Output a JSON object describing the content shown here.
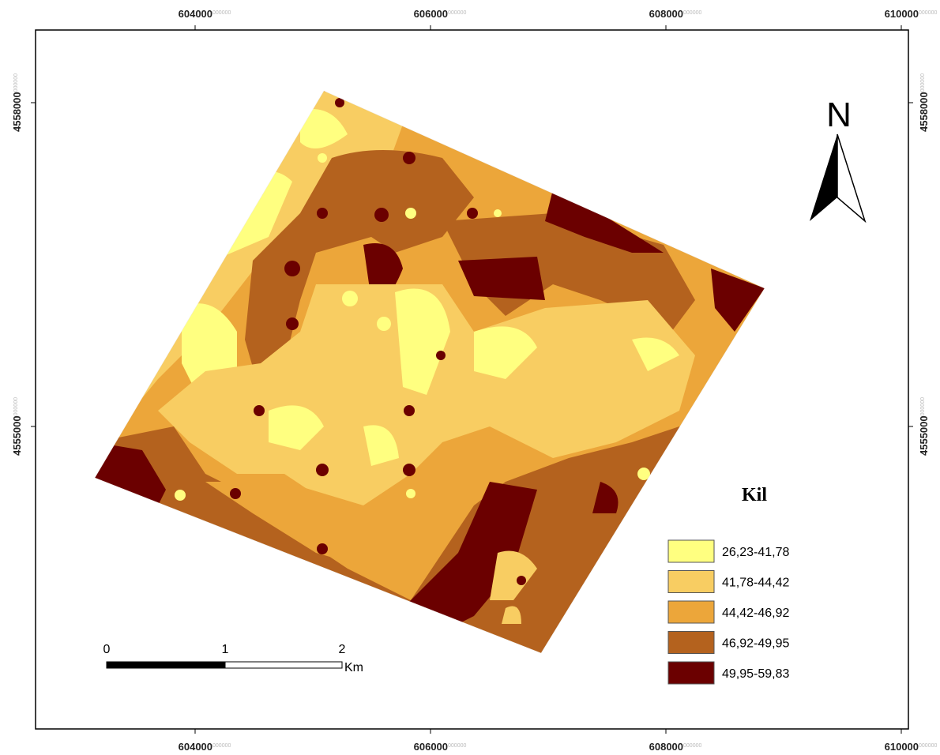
{
  "frame": {
    "x_labels": [
      {
        "main": "604000",
        "suffix": "000000"
      },
      {
        "main": "606000",
        "suffix": "000000"
      },
      {
        "main": "608000",
        "suffix": "000000"
      },
      {
        "main": "610000",
        "suffix": "000000"
      }
    ],
    "y_labels": [
      {
        "main": "4558000",
        "suffix": "000000"
      },
      {
        "main": "4555000",
        "suffix": "000000"
      }
    ]
  },
  "north_arrow": "N",
  "legend": {
    "title": "Kil",
    "items": [
      {
        "label": "26,23-41,78",
        "color": "#ffff80"
      },
      {
        "label": "41,78-44,42",
        "color": "#f8cd62"
      },
      {
        "label": "44,42-46,92",
        "color": "#eca63a"
      },
      {
        "label": "46,92-49,95",
        "color": "#b4621e"
      },
      {
        "label": "49,95-59,83",
        "color": "#6b0000"
      }
    ]
  },
  "scale_bar": {
    "ticks": [
      "0",
      "1",
      "2"
    ],
    "unit": "Km"
  }
}
